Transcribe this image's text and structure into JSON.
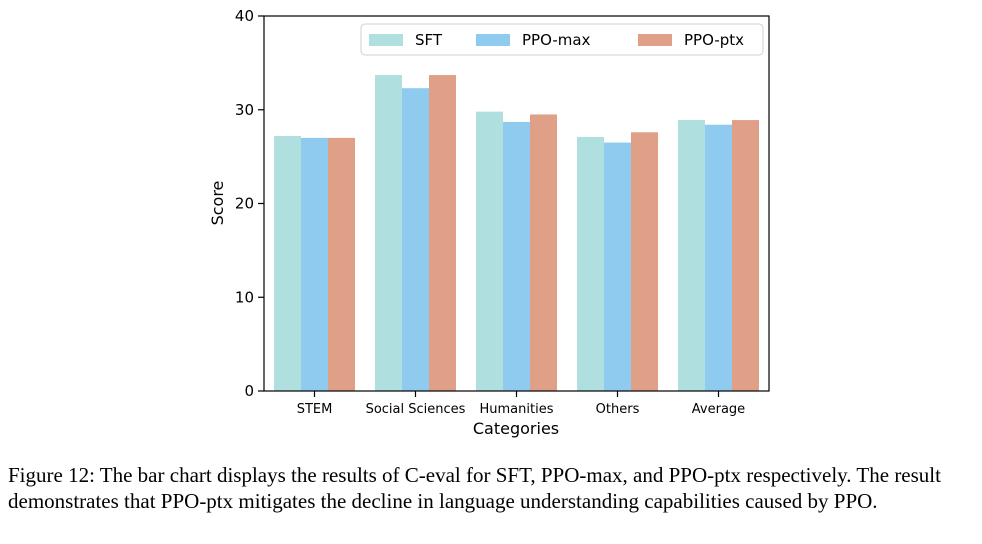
{
  "chart_data": {
    "type": "bar",
    "title": "",
    "xlabel": "Categories",
    "ylabel": "Score",
    "ylim": [
      0,
      40
    ],
    "yticks": [
      0,
      10,
      20,
      30,
      40
    ],
    "categories": [
      "STEM",
      "Social Sciences",
      "Humanities",
      "Others",
      "Average"
    ],
    "series": [
      {
        "name": "SFT",
        "color": "#b0dfe0",
        "values": [
          27.2,
          33.7,
          29.8,
          27.1,
          28.9
        ]
      },
      {
        "name": "PPO-max",
        "color": "#8fcbee",
        "values": [
          27.0,
          32.3,
          28.7,
          26.5,
          28.4
        ]
      },
      {
        "name": "PPO-ptx",
        "color": "#e0a088",
        "values": [
          27.0,
          33.7,
          29.5,
          27.6,
          28.9
        ]
      }
    ],
    "legend_position": "top-right"
  },
  "caption": {
    "text": "Figure 12: The bar chart displays the results of C-eval for SFT, PPO-max, and PPO-ptx respectively. The result demonstrates that PPO-ptx mitigates the decline in language understanding capabilities caused by PPO."
  }
}
